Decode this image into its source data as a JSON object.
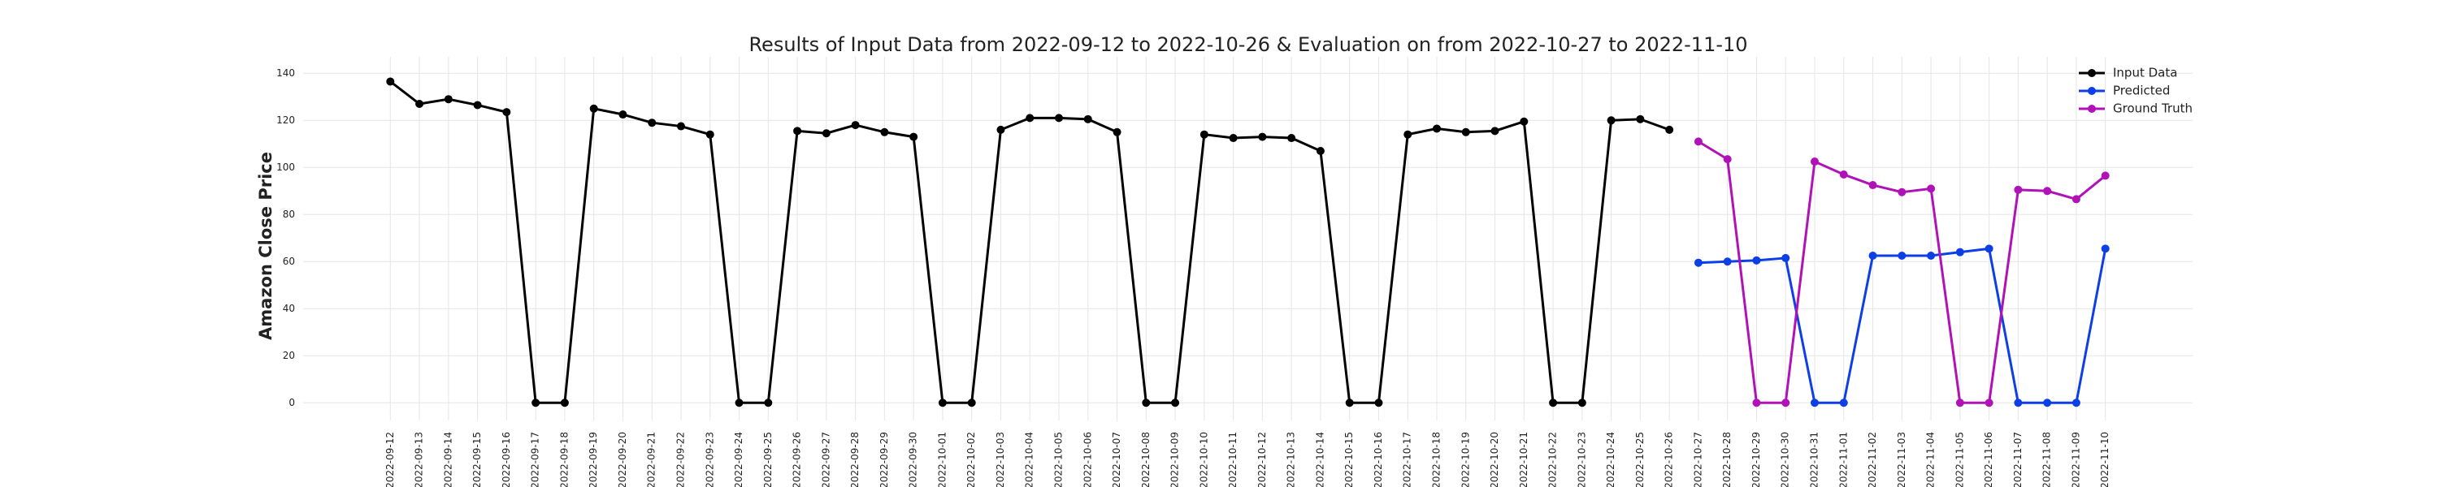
{
  "chart_data": {
    "type": "line",
    "title": "Results of Input Data from 2022-09-12 to 2022-10-26 & Evaluation on from 2022-10-27 to 2022-11-10",
    "ylabel": "Amazon Close Price",
    "categories": [
      "2022-09-12",
      "2022-09-13",
      "2022-09-14",
      "2022-09-15",
      "2022-09-16",
      "2022-09-17",
      "2022-09-18",
      "2022-09-19",
      "2022-09-20",
      "2022-09-21",
      "2022-09-22",
      "2022-09-23",
      "2022-09-24",
      "2022-09-25",
      "2022-09-26",
      "2022-09-27",
      "2022-09-28",
      "2022-09-29",
      "2022-09-30",
      "2022-10-01",
      "2022-10-02",
      "2022-10-03",
      "2022-10-04",
      "2022-10-05",
      "2022-10-06",
      "2022-10-07",
      "2022-10-08",
      "2022-10-09",
      "2022-10-10",
      "2022-10-11",
      "2022-10-12",
      "2022-10-13",
      "2022-10-14",
      "2022-10-15",
      "2022-10-16",
      "2022-10-17",
      "2022-10-18",
      "2022-10-19",
      "2022-10-20",
      "2022-10-21",
      "2022-10-22",
      "2022-10-23",
      "2022-10-24",
      "2022-10-25",
      "2022-10-26",
      "2022-10-27",
      "2022-10-28",
      "2022-10-29",
      "2022-10-30",
      "2022-10-31",
      "2022-11-01",
      "2022-11-02",
      "2022-11-03",
      "2022-11-04",
      "2022-11-05",
      "2022-11-06",
      "2022-11-07",
      "2022-11-08",
      "2022-11-09",
      "2022-11-10"
    ],
    "series": [
      {
        "name": "Input Data",
        "color": "#000000",
        "values": [
          136.5,
          127,
          129,
          126.5,
          123.5,
          0,
          0,
          125,
          122.5,
          119,
          117.5,
          114,
          0,
          0,
          115.5,
          114.5,
          118,
          115,
          113,
          0,
          0,
          116,
          121,
          121,
          120.5,
          115,
          0,
          0,
          114,
          112.5,
          113,
          112.5,
          107,
          0,
          0,
          114,
          116.5,
          115,
          115.5,
          119.5,
          0,
          0,
          120,
          120.5,
          116,
          null,
          null,
          null,
          null,
          null,
          null,
          null,
          null,
          null,
          null,
          null,
          null,
          null,
          null,
          null
        ]
      },
      {
        "name": "Predicted",
        "color": "#0d3fe6",
        "values": [
          null,
          null,
          null,
          null,
          null,
          null,
          null,
          null,
          null,
          null,
          null,
          null,
          null,
          null,
          null,
          null,
          null,
          null,
          null,
          null,
          null,
          null,
          null,
          null,
          null,
          null,
          null,
          null,
          null,
          null,
          null,
          null,
          null,
          null,
          null,
          null,
          null,
          null,
          null,
          null,
          null,
          null,
          null,
          null,
          null,
          59.5,
          60,
          60.5,
          61.5,
          0,
          0,
          62.5,
          62.5,
          62.5,
          64,
          65.5,
          0,
          0,
          0,
          65.5
        ]
      },
      {
        "name": "Ground Truth",
        "color": "#b012b8",
        "values": [
          null,
          null,
          null,
          null,
          null,
          null,
          null,
          null,
          null,
          null,
          null,
          null,
          null,
          null,
          null,
          null,
          null,
          null,
          null,
          null,
          null,
          null,
          null,
          null,
          null,
          null,
          null,
          null,
          null,
          null,
          null,
          null,
          null,
          null,
          null,
          null,
          null,
          null,
          null,
          null,
          null,
          null,
          null,
          null,
          null,
          111,
          103.5,
          0,
          0,
          102.5,
          97,
          92.5,
          89.5,
          91,
          0,
          0,
          90.5,
          90,
          86.5,
          96.5
        ]
      }
    ],
    "ylim": [
      -7.5,
      147
    ],
    "yticks": [
      0,
      20,
      40,
      60,
      80,
      100,
      120,
      140
    ],
    "grid": true,
    "legend": "upper right"
  }
}
